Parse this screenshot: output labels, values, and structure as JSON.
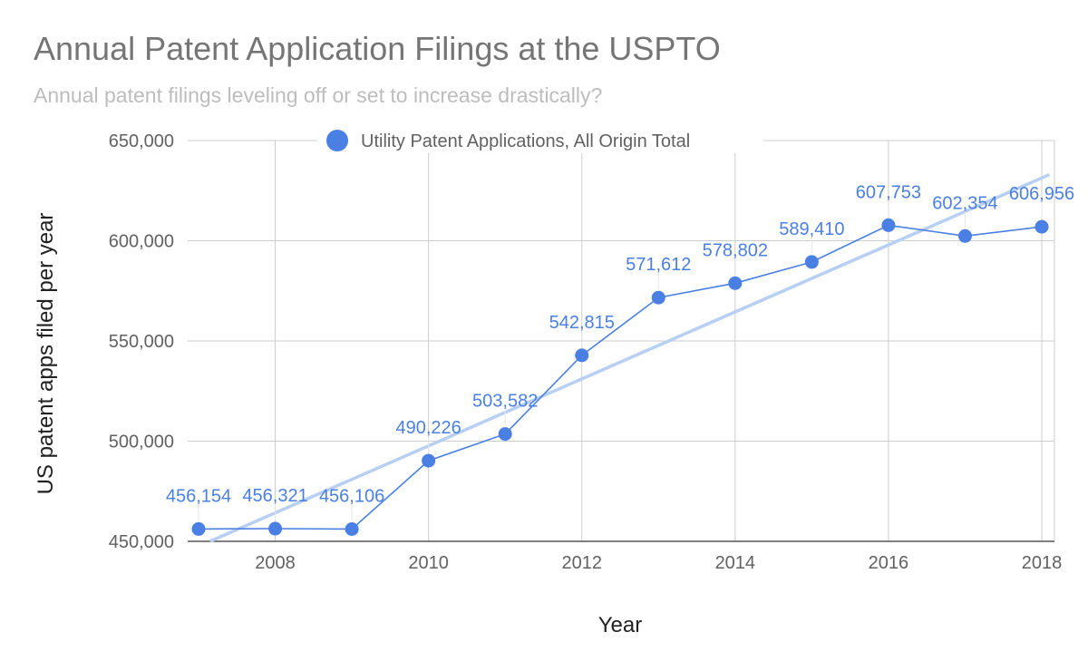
{
  "chart_data": {
    "type": "line",
    "title": "Annual Patent Application Filings at the USPTO",
    "subtitle": "Annual patent filings leveling off or set to increase drastically?",
    "xlabel": "Year",
    "ylabel": "US patent apps filed per year",
    "xlim": [
      2007,
      2018
    ],
    "ylim": [
      450000,
      650000
    ],
    "x_ticks": [
      2008,
      2010,
      2012,
      2014,
      2016,
      2018
    ],
    "x_tick_labels": [
      "2008",
      "2010",
      "2012",
      "2014",
      "2016",
      "2018"
    ],
    "y_ticks": [
      450000,
      500000,
      550000,
      600000,
      650000
    ],
    "y_tick_labels": [
      "450,000",
      "500,000",
      "550,000",
      "600,000",
      "650,000"
    ],
    "grid": true,
    "legend": {
      "position": "top",
      "entries": [
        "Utility Patent Applications, All Origin Total"
      ]
    },
    "series": [
      {
        "name": "Utility Patent Applications, All Origin Total",
        "color": "#4a7fe4",
        "x": [
          2007,
          2008,
          2009,
          2010,
          2011,
          2012,
          2013,
          2014,
          2015,
          2016,
          2017,
          2018
        ],
        "values": [
          456154,
          456321,
          456106,
          490226,
          503582,
          542815,
          571612,
          578802,
          589410,
          607753,
          602354,
          606956
        ],
        "labels": [
          "456,154",
          "456,321",
          "456,106",
          "490,226",
          "503,582",
          "542,815",
          "571,612",
          "578,802",
          "589,410",
          "607,753",
          "602,354",
          "606,956"
        ]
      }
    ],
    "trendline": {
      "type": "linear",
      "color": "#b7cff3",
      "x_start": 2007.15,
      "y_start": 450000,
      "x_end": 2018.1,
      "y_end": 633000
    }
  }
}
